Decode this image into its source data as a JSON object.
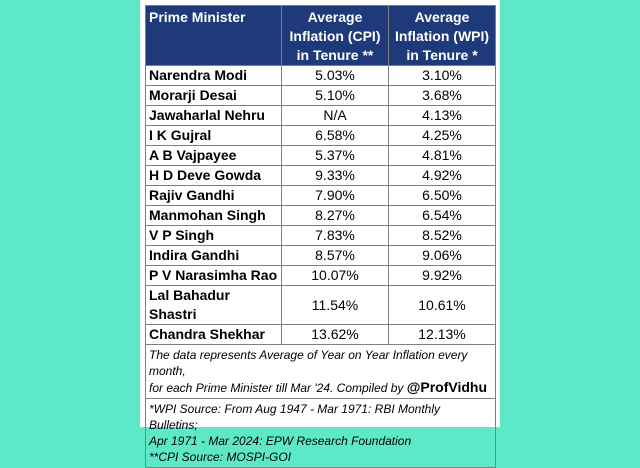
{
  "headers": {
    "name": "Prime Minister",
    "cpi": [
      "Average",
      "Inflation (CPI)",
      "in Tenure **"
    ],
    "wpi": [
      "Average",
      "Inflation (WPI)",
      "in Tenure *"
    ]
  },
  "rows": [
    {
      "name": "Narendra Modi",
      "cpi": "5.03%",
      "wpi": "3.10%"
    },
    {
      "name": "Morarji Desai",
      "cpi": "5.10%",
      "wpi": "3.68%"
    },
    {
      "name": "Jawaharlal Nehru",
      "cpi": "N/A",
      "wpi": "4.13%"
    },
    {
      "name": "I K Gujral",
      "cpi": "6.58%",
      "wpi": "4.25%"
    },
    {
      "name": "A B Vajpayee",
      "cpi": "5.37%",
      "wpi": "4.81%"
    },
    {
      "name": "H D Deve Gowda",
      "cpi": "9.33%",
      "wpi": "4.92%"
    },
    {
      "name": "Rajiv Gandhi",
      "cpi": "7.90%",
      "wpi": "6.50%"
    },
    {
      "name": "Manmohan Singh",
      "cpi": "8.27%",
      "wpi": "6.54%"
    },
    {
      "name": "V P Singh",
      "cpi": "7.83%",
      "wpi": "8.52%"
    },
    {
      "name": "Indira Gandhi",
      "cpi": "8.57%",
      "wpi": "9.06%"
    },
    {
      "name": "P V Narasimha Rao",
      "cpi": "10.07%",
      "wpi": "9.92%"
    },
    {
      "name": "Lal Bahadur Shastri",
      "cpi": "11.54%",
      "wpi": "10.61%"
    },
    {
      "name": "Chandra Shekhar",
      "cpi": "13.62%",
      "wpi": "12.13%"
    }
  ],
  "note": {
    "line1": "The data represents Average of Year on Year Inflation every month,",
    "line2": "for each Prime Minister till Mar '24. Compiled by ",
    "handle": "@ProfVidhu"
  },
  "sources": {
    "wpi_line1": "*WPI Source: From Aug 1947 - Mar 1971: RBI Monthly Bulletins;",
    "wpi_line2": "Apr 1971 - Mar 2024: EPW Research Foundation",
    "cpi": "**CPI Source: MOSPI-GOI"
  },
  "colors": {
    "background": "#5de8c8",
    "header_fill": "#1f3a7a"
  }
}
